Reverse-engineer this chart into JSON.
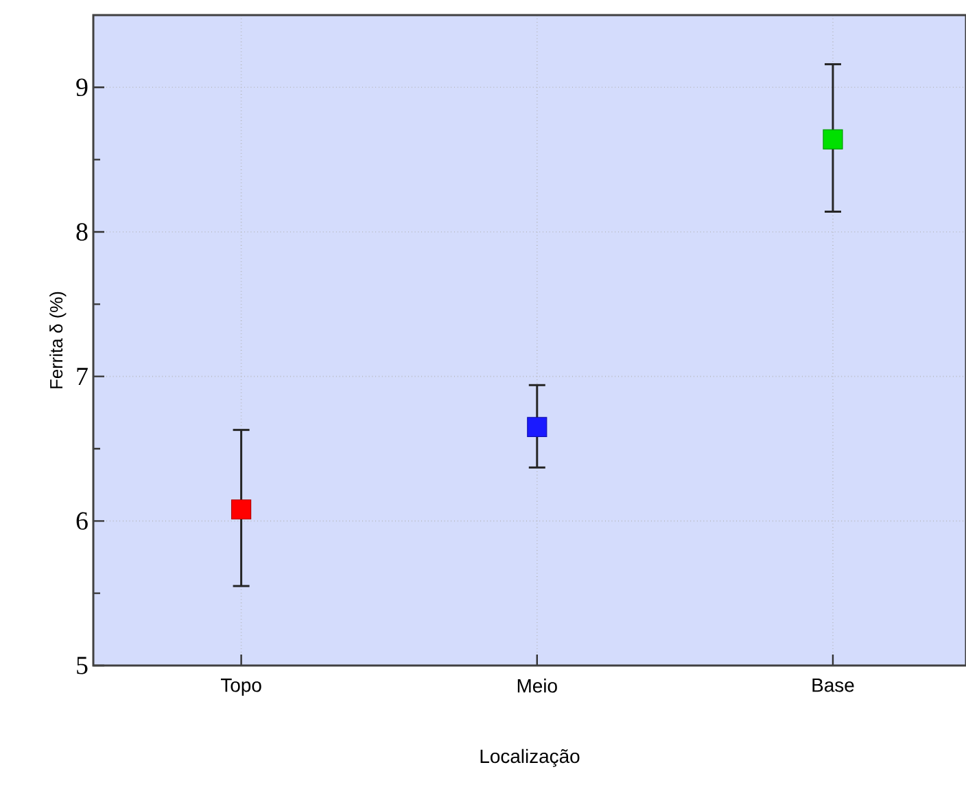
{
  "chart_data": {
    "type": "scatter",
    "xlabel": "Localização",
    "ylabel": "Ferrita δ (%)",
    "categories": [
      "Topo",
      "Meio",
      "Base"
    ],
    "values": [
      6.08,
      6.65,
      8.64
    ],
    "colors": [
      "#ff0000",
      "#1a1aff",
      "#00e000"
    ],
    "errors": [
      [
        5.55,
        6.63
      ],
      [
        6.37,
        6.94
      ],
      [
        8.14,
        9.16
      ]
    ],
    "ylim": [
      5,
      9.5
    ],
    "yticks": [
      5,
      6,
      7,
      8,
      9
    ],
    "grid": true,
    "marker": "square"
  }
}
